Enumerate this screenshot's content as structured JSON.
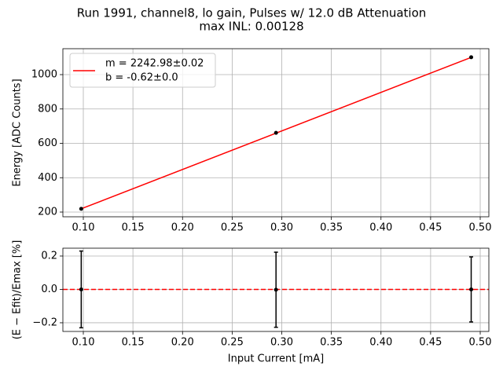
{
  "chart_data": [
    {
      "type": "scatter",
      "title": "Run 1991, channel8, lo gain, Pulses w/ 12.0 dB Attenuation",
      "subtitle": "max INL: 0.00128",
      "ylabel": "Energy [ADC Counts]",
      "xlim": [
        0.0794,
        0.5087
      ],
      "ylim": [
        172.6,
        1150.9
      ],
      "xticks": [
        {
          "value": 0.1,
          "label": "0.10"
        },
        {
          "value": 0.15,
          "label": "0.15"
        },
        {
          "value": 0.2,
          "label": "0.20"
        },
        {
          "value": 0.25,
          "label": "0.25"
        },
        {
          "value": 0.3,
          "label": "0.30"
        },
        {
          "value": 0.35,
          "label": "0.35"
        },
        {
          "value": 0.4,
          "label": "0.40"
        },
        {
          "value": 0.45,
          "label": "0.45"
        },
        {
          "value": 0.5,
          "label": "0.50"
        }
      ],
      "yticks": [
        200,
        400,
        600,
        800,
        1000
      ],
      "grid": true,
      "legend": "upper left",
      "legend_extra": "b = -0.62±0.0",
      "series": [
        {
          "name": "m = 2242.98±0.02",
          "color": "#ff0000",
          "kind": "line",
          "x": [
            0.0979,
            0.4909
          ],
          "values": [
            218.97,
            1100.46
          ]
        },
        {
          "color": "#000000",
          "kind": "marker",
          "x": [
            0.0979,
            0.2942,
            0.4909
          ],
          "values": [
            219,
            661,
            1101
          ]
        }
      ]
    },
    {
      "type": "errorbar",
      "xlabel": "Input Current [mA]",
      "ylabel": "(E − Efit)/Emax [%]",
      "xlim": [
        0.0794,
        0.5087
      ],
      "ylim": [
        -0.252,
        0.247
      ],
      "xticks": [
        {
          "value": 0.1,
          "label": "0.10"
        },
        {
          "value": 0.15,
          "label": "0.15"
        },
        {
          "value": 0.2,
          "label": "0.20"
        },
        {
          "value": 0.25,
          "label": "0.25"
        },
        {
          "value": 0.3,
          "label": "0.30"
        },
        {
          "value": 0.35,
          "label": "0.35"
        },
        {
          "value": 0.4,
          "label": "0.40"
        },
        {
          "value": 0.45,
          "label": "0.45"
        },
        {
          "value": 0.5,
          "label": "0.50"
        }
      ],
      "yticks": [
        {
          "value": -0.2,
          "label": "−0.2"
        },
        {
          "value": 0,
          "label": "0.0"
        },
        0.2
      ],
      "grid": true,
      "hline": 0,
      "hline_color": "#ff0000",
      "series": [
        {
          "color": "#000000",
          "x": [
            0.0979,
            0.2942,
            0.4909
          ],
          "values": [
            0.0,
            -0.002,
            0.0
          ],
          "errors": [
            0.23,
            0.225,
            0.195
          ]
        }
      ]
    }
  ]
}
